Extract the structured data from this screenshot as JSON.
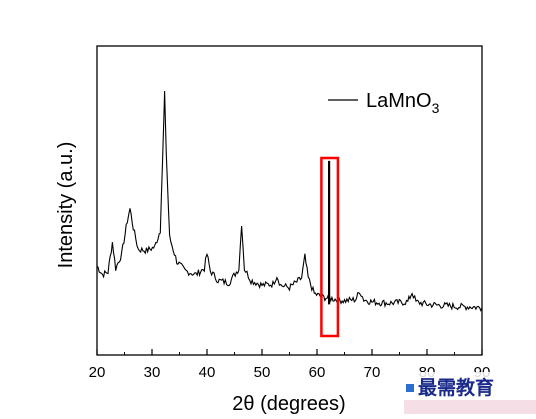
{
  "chart_data": {
    "type": "line",
    "xlabel": "2θ (degrees)",
    "ylabel": "Intensity (a.u.)",
    "xlim": [
      20,
      90
    ],
    "x_ticks": [
      "20",
      "30",
      "40",
      "50",
      "60",
      "70",
      "80",
      "90"
    ],
    "y_ticks_shown": false,
    "grid": false,
    "legend": {
      "position": "top-right",
      "entries": [
        "LaMnO3"
      ],
      "label_main": "LaMnO",
      "label_sub": "3"
    },
    "series": [
      {
        "name": "LaMnO3",
        "color": "#000000",
        "points": [
          [
            20,
            0.28
          ],
          [
            21,
            0.245
          ],
          [
            22,
            0.255
          ],
          [
            22.8,
            0.38
          ],
          [
            23.4,
            0.27
          ],
          [
            24.5,
            0.33
          ],
          [
            25.5,
            0.47
          ],
          [
            26,
            0.52
          ],
          [
            26.6,
            0.44
          ],
          [
            27.5,
            0.35
          ],
          [
            29,
            0.345
          ],
          [
            30.5,
            0.36
          ],
          [
            31.5,
            0.43
          ],
          [
            32.1,
            0.86
          ],
          [
            32.3,
            1.0
          ],
          [
            32.6,
            0.75
          ],
          [
            33.2,
            0.4
          ],
          [
            34.5,
            0.3
          ],
          [
            36,
            0.26
          ],
          [
            38,
            0.245
          ],
          [
            39.5,
            0.27
          ],
          [
            40,
            0.33
          ],
          [
            40.6,
            0.26
          ],
          [
            42,
            0.22
          ],
          [
            44,
            0.21
          ],
          [
            45.8,
            0.27
          ],
          [
            46.3,
            0.46
          ],
          [
            46.8,
            0.27
          ],
          [
            48,
            0.22
          ],
          [
            50,
            0.2
          ],
          [
            52,
            0.205
          ],
          [
            52.7,
            0.24
          ],
          [
            53.4,
            0.2
          ],
          [
            55,
            0.19
          ],
          [
            57.2,
            0.23
          ],
          [
            57.8,
            0.32
          ],
          [
            58.4,
            0.23
          ],
          [
            59.5,
            0.165
          ],
          [
            61,
            0.15
          ],
          [
            62.5,
            0.145
          ],
          [
            63.5,
            0.14
          ],
          [
            65,
            0.135
          ],
          [
            67,
            0.14
          ],
          [
            67.8,
            0.175
          ],
          [
            68.5,
            0.14
          ],
          [
            70,
            0.13
          ],
          [
            73,
            0.125
          ],
          [
            76.5,
            0.13
          ],
          [
            77.3,
            0.17
          ],
          [
            78,
            0.13
          ],
          [
            80,
            0.12
          ],
          [
            83,
            0.115
          ],
          [
            86,
            0.11
          ],
          [
            88,
            0.11
          ],
          [
            90,
            0.105
          ]
        ]
      }
    ],
    "reference_line": {
      "x": 62.2,
      "height": 0.72
    },
    "highlight_box": {
      "x_range": [
        60.8,
        63.8
      ],
      "color": "#ff0000"
    }
  },
  "watermark": {
    "text": "最需教育"
  }
}
